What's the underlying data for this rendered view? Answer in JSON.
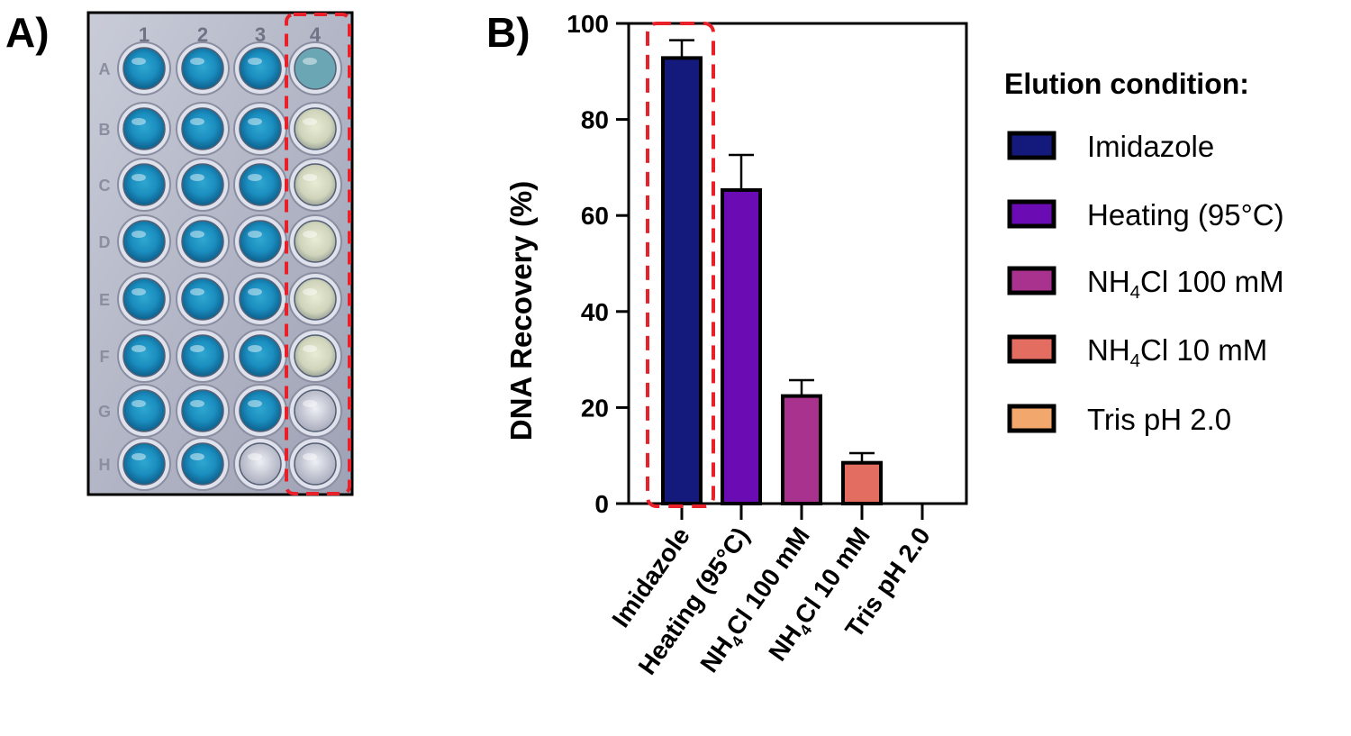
{
  "panels": {
    "a_label": "A)",
    "b_label": "B)"
  },
  "plate": {
    "columns": [
      "1",
      "2",
      "3",
      "4"
    ],
    "rows": [
      "A",
      "B",
      "C",
      "D",
      "E",
      "F",
      "G",
      "H"
    ]
  },
  "chart_data": {
    "type": "bar",
    "title": "",
    "xlabel": "",
    "ylabel": "DNA Recovery  (%)",
    "ylim": [
      0,
      100
    ],
    "yticks": [
      "0",
      "20",
      "40",
      "60",
      "80",
      "100"
    ],
    "categories": [
      {
        "main": "Imidazole",
        "pre": "",
        "sub": "",
        "post": ""
      },
      {
        "main": "Heating (95°C)",
        "pre": "",
        "sub": "",
        "post": ""
      },
      {
        "main": "",
        "pre": "NH",
        "sub": "4",
        "post": "Cl 100 mM"
      },
      {
        "main": "",
        "pre": "NH",
        "sub": "4",
        "post": "Cl 10 mM"
      },
      {
        "main": "Tris pH 2.0",
        "pre": "",
        "sub": "",
        "post": ""
      }
    ],
    "values": [
      92.8,
      65.3,
      22.4,
      8.5,
      0
    ],
    "errors": [
      3.7,
      7.3,
      3.3,
      2.0,
      0
    ],
    "colors": [
      "#141a7c",
      "#6a0bb4",
      "#a8328e",
      "#e26d60",
      "#f2a86c"
    ],
    "highlight": "Imidazole",
    "grid": false,
    "legend": {
      "title": "Elution condition:",
      "placement": "right",
      "entries": [
        {
          "main": "Imidazole",
          "pre": "",
          "sub": "",
          "post": ""
        },
        {
          "main": "Heating (95°C)",
          "pre": "",
          "sub": "",
          "post": ""
        },
        {
          "main": "",
          "pre": "NH",
          "sub": "4",
          "post": "Cl 100 mM"
        },
        {
          "main": "",
          "pre": "NH",
          "sub": "4",
          "post": "Cl 10 mM"
        },
        {
          "main": "Tris pH 2.0",
          "pre": "",
          "sub": "",
          "post": ""
        }
      ]
    }
  }
}
